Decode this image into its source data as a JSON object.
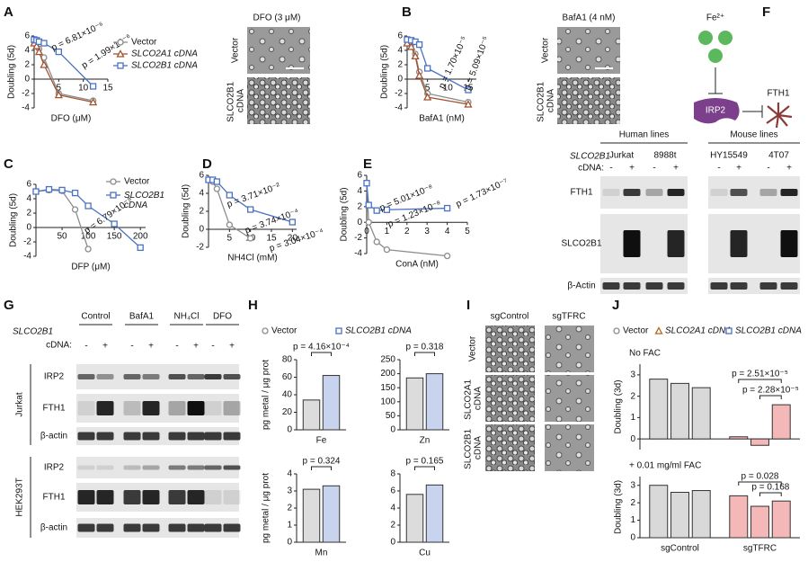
{
  "panel_labels": [
    "A",
    "B",
    "C",
    "D",
    "E",
    "F",
    "G",
    "H",
    "I",
    "J"
  ],
  "images_A": {
    "title": "DFO (3 μM)",
    "rows": [
      "Vector",
      "SLCO2B1 cDNA"
    ]
  },
  "images_B": {
    "title": "BafA1 (4 nM)",
    "rows": [
      "Vector",
      "SLCO2B1 cDNA"
    ]
  },
  "diagram_F": {
    "ion": "Fe²⁺",
    "regulator": "IRP2",
    "target": "FTH1"
  },
  "blot_E": {
    "groups": [
      {
        "title": "Human lines",
        "lines": [
          "Jurkat",
          "8988t"
        ]
      },
      {
        "title": "Mouse lines",
        "lines": [
          "HY15549",
          "4T07"
        ]
      }
    ],
    "gene": "SLCO2B1",
    "cdna": "cDNA:",
    "lanes": [
      "-",
      "+",
      "-",
      "+",
      "-",
      "+",
      "-",
      "+"
    ],
    "rows": [
      "FTH1",
      "SLCO2B1",
      "β-Actin"
    ]
  },
  "blot_G": {
    "gene": "SLCO2B1",
    "cdna": "cDNA:",
    "treatments": [
      "Control",
      "BafA1",
      "NH₄Cl",
      "DFO"
    ],
    "lanes": [
      "-",
      "+",
      "-",
      "+",
      "-",
      "+",
      "-",
      "+"
    ],
    "cell_lines": [
      {
        "name": "Jurkat",
        "rows": [
          "IRP2",
          "FTH1",
          "β-actin"
        ]
      },
      {
        "name": "HEK293T",
        "rows": [
          "IRP2",
          "FTH1",
          "β-actin"
        ]
      }
    ]
  },
  "images_I": {
    "columns": [
      "sgControl",
      "sgTFRC"
    ],
    "rows": [
      "Vector",
      "SLCO2A1 cDNA",
      "SLCO2B1 cDNA"
    ]
  },
  "chart_data": [
    {
      "type": "line",
      "xlabel": "DFO (μM)",
      "ylabel": "Doubling (5d)",
      "x": [
        0,
        0.5,
        1,
        2,
        5,
        12
      ],
      "xlim": [
        0,
        15
      ],
      "xticks": [
        5,
        10,
        15
      ],
      "ylim": [
        -4,
        6
      ],
      "yticks": [
        -4,
        -2,
        0,
        2,
        4,
        6
      ],
      "series": [
        {
          "name": "Vector",
          "color": "#8c8c8c",
          "marker": "circle",
          "values": [
            5.2,
            5.0,
            4.2,
            3.0,
            -2.0,
            -3.0
          ]
        },
        {
          "name": "SLCO2A1 cDNA",
          "color": "#a0522d",
          "marker": "triangle",
          "values": [
            5.0,
            4.6,
            3.8,
            2.0,
            -2.2,
            -3.2
          ]
        },
        {
          "name": "SLCO2B1 cDNA",
          "color": "#4a72c4",
          "marker": "square",
          "values": [
            5.5,
            5.4,
            5.2,
            5.0,
            3.8,
            -1.0
          ]
        }
      ],
      "annotations": [
        "p = 6.81×10⁻⁶",
        "p = 1.99×10⁻⁶"
      ]
    },
    {
      "type": "line",
      "xlabel": "BafA1 (nM)",
      "ylabel": "Doubling (5d)",
      "x": [
        0,
        1,
        2,
        3,
        5,
        15
      ],
      "xlim": [
        0,
        17
      ],
      "xticks": [
        5,
        10,
        15
      ],
      "ylim": [
        -4,
        6
      ],
      "yticks": [
        -4,
        -2,
        0,
        2,
        4,
        6
      ],
      "series": [
        {
          "color": "#8c8c8c",
          "marker": "circle",
          "values": [
            5.3,
            4.8,
            3.5,
            1.0,
            -2.0,
            -3.2
          ]
        },
        {
          "color": "#a0522d",
          "marker": "triangle",
          "values": [
            5.0,
            4.5,
            3.2,
            0.5,
            -2.5,
            -3.5
          ]
        },
        {
          "color": "#4a72c4",
          "marker": "square",
          "values": [
            5.5,
            5.4,
            5.2,
            4.8,
            1.5,
            -1.5
          ]
        }
      ],
      "annotations": [
        "p = 1.70×10⁻⁵",
        "p = 5.09×10⁻⁵"
      ]
    },
    {
      "type": "line",
      "xlabel": "DFP (μM)",
      "ylabel": "Doubling (5d)",
      "x": [
        0,
        25,
        50,
        75,
        100,
        150,
        200
      ],
      "xlim": [
        0,
        210
      ],
      "xticks": [
        50,
        100,
        150,
        200
      ],
      "ylim": [
        -4,
        6
      ],
      "yticks": [
        -4,
        -2,
        0,
        2,
        4,
        6
      ],
      "series": [
        {
          "name": "Vector",
          "color": "#8c8c8c",
          "marker": "circle",
          "values": [
            5.0,
            5.2,
            5.1,
            2.5,
            -3.0,
            null,
            null
          ]
        },
        {
          "name": "SLCO2B1 cDNA",
          "color": "#4a72c4",
          "marker": "square",
          "values": [
            5.0,
            5.3,
            5.2,
            4.8,
            3.0,
            0.5,
            -2.8
          ]
        }
      ],
      "annotations": [
        "p = 6.79×10⁻⁹"
      ]
    },
    {
      "type": "line",
      "xlabel": "NH4Cl (mM)",
      "ylabel": "Doubling (5d)",
      "x": [
        0,
        1,
        2,
        5,
        10,
        20
      ],
      "xlim": [
        0,
        21
      ],
      "xticks": [
        5,
        10,
        15,
        20
      ],
      "ylim": [
        -2,
        6
      ],
      "yticks": [
        -2,
        0,
        2,
        4,
        6
      ],
      "series": [
        {
          "color": "#8c8c8c",
          "marker": "circle",
          "values": [
            5.5,
            5.3,
            4.5,
            0.5,
            -1.0,
            null
          ]
        },
        {
          "color": "#4a72c4",
          "marker": "square",
          "values": [
            5.5,
            5.5,
            5.3,
            3.8,
            2.2,
            0.8
          ]
        }
      ],
      "annotations": [
        "p = 3.71×10⁻²",
        "p = 3.74×10⁻⁴",
        "p = 3.04×10⁻⁴"
      ]
    },
    {
      "type": "line",
      "xlabel": "ConA (nM)",
      "ylabel": "Doubling (5d)",
      "x": [
        0,
        0.1,
        0.5,
        1,
        4
      ],
      "xlim": [
        0,
        5
      ],
      "xticks": [
        0,
        1,
        2,
        3,
        4,
        5
      ],
      "ylim": [
        -4,
        6
      ],
      "yticks": [
        -4,
        -2,
        0,
        2,
        4,
        6
      ],
      "series": [
        {
          "color": "#8c8c8c",
          "marker": "circle",
          "values": [
            5.0,
            0.0,
            -2.5,
            -3.5,
            -4.3
          ]
        },
        {
          "color": "#4a72c4",
          "marker": "square",
          "values": [
            5.0,
            2.2,
            1.5,
            1.6,
            1.8
          ]
        }
      ],
      "annotations": [
        "p = 5.01×10⁻⁸",
        "p = 1.23×10⁻⁸",
        "p = 1.73×10⁻⁷"
      ]
    },
    {
      "type": "bar",
      "ylabel": "pg metal / μg prot",
      "categories": [
        "Fe"
      ],
      "ylim": [
        0,
        80
      ],
      "yticks": [
        0,
        20,
        40,
        60,
        80
      ],
      "series": [
        {
          "name": "Vector",
          "color": "#8c8c8c",
          "marker": "circle",
          "values": [
            34
          ]
        },
        {
          "name": "SLCO2B1 cDNA",
          "color": "#4a72c4",
          "marker": "square",
          "values": [
            62
          ]
        }
      ],
      "annotations": [
        "p = 4.16×10⁻⁴"
      ]
    },
    {
      "type": "bar",
      "categories": [
        "Zn"
      ],
      "ylim": [
        0,
        250
      ],
      "yticks": [
        0,
        50,
        100,
        150,
        200,
        250
      ],
      "series": [
        {
          "color": "#8c8c8c",
          "values": [
            185
          ]
        },
        {
          "color": "#4a72c4",
          "values": [
            200
          ]
        }
      ],
      "annotations": [
        "p = 0.318"
      ]
    },
    {
      "type": "bar",
      "ylabel": "pg metal / μg prot",
      "categories": [
        "Mn"
      ],
      "ylim": [
        0,
        4
      ],
      "yticks": [
        0,
        1,
        2,
        3,
        4
      ],
      "series": [
        {
          "color": "#8c8c8c",
          "values": [
            3.1
          ]
        },
        {
          "color": "#4a72c4",
          "values": [
            3.3
          ]
        }
      ],
      "annotations": [
        "p = 0.324"
      ]
    },
    {
      "type": "bar",
      "categories": [
        "Cu"
      ],
      "ylim": [
        0,
        8
      ],
      "yticks": [
        0,
        2,
        4,
        6,
        8
      ],
      "series": [
        {
          "color": "#8c8c8c",
          "values": [
            5.6
          ]
        },
        {
          "color": "#4a72c4",
          "values": [
            6.7
          ]
        }
      ],
      "annotations": [
        "p = 0.165"
      ]
    },
    {
      "type": "bar",
      "title": "No FAC",
      "ylabel": "Doubling (3d)",
      "categories": [
        null,
        null
      ],
      "ylim": [
        -0.5,
        3.5
      ],
      "yticks": [
        0,
        1,
        2,
        3
      ],
      "bar_fills": [
        "#d9d9d9",
        "#f4b8b8"
      ],
      "series": [
        {
          "name": "Vector",
          "color": "#8c8c8c",
          "marker": "circle",
          "values": [
            2.8,
            0.1
          ]
        },
        {
          "name": "SLCO2A1 cDNA",
          "color": "#b5651d",
          "marker": "triangle",
          "values": [
            2.6,
            -0.3
          ]
        },
        {
          "name": "SLCO2B1 cDNA",
          "color": "#4a72c4",
          "marker": "square",
          "values": [
            2.4,
            1.6
          ]
        }
      ],
      "annotations": [
        "p = 2.51×10⁻⁵",
        "p = 2.28×10⁻⁵"
      ]
    },
    {
      "type": "bar",
      "title": "+ 0.01 mg/ml FAC",
      "ylabel": "Doubling (3d)",
      "categories": [
        "sgControl",
        "sgTFRC"
      ],
      "ylim": [
        0,
        3.5
      ],
      "yticks": [
        0,
        1,
        2,
        3
      ],
      "bar_fills": [
        "#d9d9d9",
        "#f4b8b8"
      ],
      "series": [
        {
          "color": "#8c8c8c",
          "values": [
            3.0,
            2.4
          ]
        },
        {
          "color": "#b5651d",
          "values": [
            2.6,
            1.8
          ]
        },
        {
          "color": "#4a72c4",
          "values": [
            2.7,
            2.1
          ]
        }
      ],
      "annotations": [
        "p = 0.028",
        "p = 0.168"
      ]
    }
  ]
}
